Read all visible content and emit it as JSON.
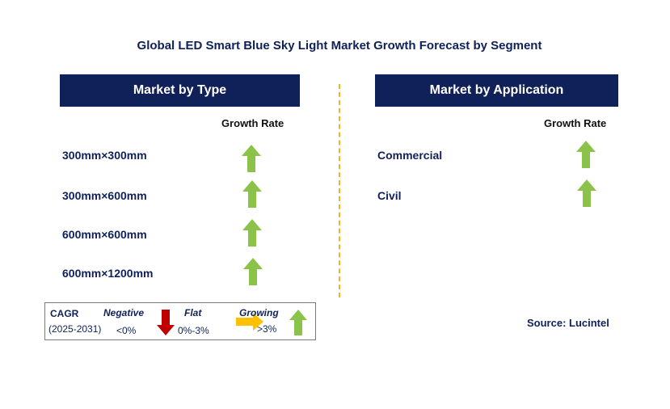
{
  "title": "Global LED Smart Blue Sky Light Market Growth Forecast by Segment",
  "type_panel": {
    "header": "Market by Type",
    "column_label": "Growth Rate",
    "rows": [
      {
        "label": "300mm×300mm",
        "trend": "growing"
      },
      {
        "label": "300mm×600mm",
        "trend": "growing"
      },
      {
        "label": "600mm×600mm",
        "trend": "growing"
      },
      {
        "label": "600mm×1200mm",
        "trend": "growing"
      }
    ]
  },
  "application_panel": {
    "header": "Market by Application",
    "column_label": "Growth Rate",
    "rows": [
      {
        "label": "Commercial",
        "trend": "growing"
      },
      {
        "label": "Civil",
        "trend": "growing"
      }
    ]
  },
  "legend": {
    "cagr": "CAGR",
    "period": "(2025-2031)",
    "negative": {
      "label": "Negative",
      "range": "<0%",
      "color": "#c00000",
      "icon": "down-arrow-icon"
    },
    "flat": {
      "label": "Flat",
      "range": "0%-3%",
      "color": "#ffc000",
      "icon": "right-arrow-icon"
    },
    "growing": {
      "label": "Growing",
      "range": ">3%",
      "color": "#8bc34a",
      "icon": "up-arrow-icon"
    }
  },
  "source": "Source: Lucintel"
}
